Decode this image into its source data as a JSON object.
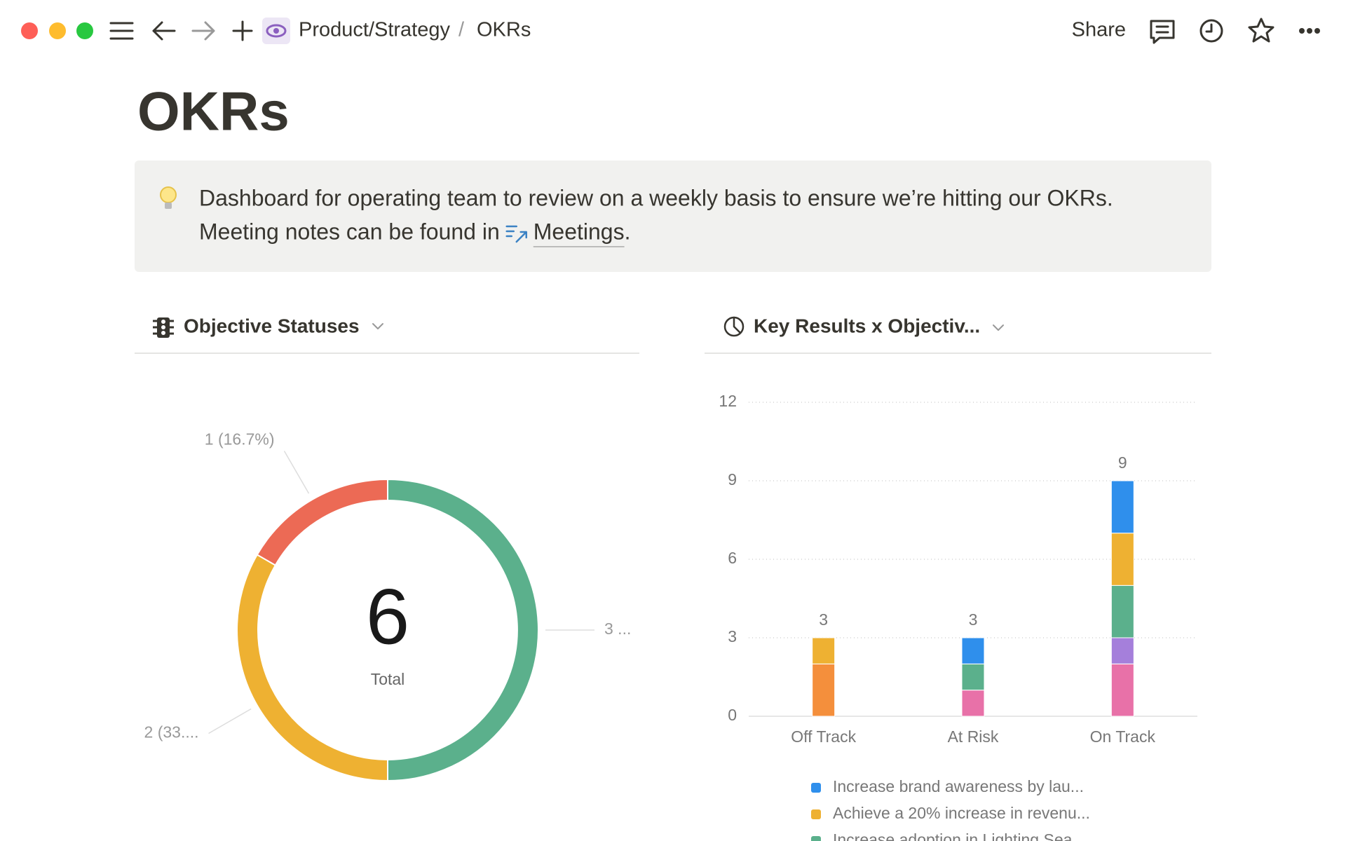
{
  "header": {
    "breadcrumb": [
      "Product/Strategy",
      "OKRs"
    ],
    "breadcrumb_separator": "/",
    "share": "Share"
  },
  "title": "OKRs",
  "callout": {
    "line1": "Dashboard for operating team to review on a weekly basis to ensure we’re hitting our OKRs.",
    "line2": "Meeting notes can be found in",
    "link": "Meetings",
    "line2_end": "."
  },
  "chart_data": [
    {
      "type": "donut",
      "title": "Objective Statuses",
      "values": [
        3,
        2,
        1
      ],
      "value_labels": [
        "3 ...",
        "2 (33....",
        "1 (16.7%)"
      ],
      "colors": [
        "#5bb08c",
        "#eeb132",
        "#ec6a55"
      ],
      "center_value": 6,
      "center_label": "Total"
    },
    {
      "type": "stacked-bar",
      "title": "Key Results x Objectiv...",
      "categories": [
        "Off Track",
        "At Risk",
        "On Track"
      ],
      "series": [
        {
          "name": "Increase brand awareness by lau...",
          "color": "#2f8fec",
          "values": [
            0,
            1,
            2
          ]
        },
        {
          "name": "Achieve a 20% increase in revenu...",
          "color": "#eeb132",
          "values": [
            1,
            0,
            2
          ]
        },
        {
          "name": "Increase adoption in Lighting Sea...",
          "color": "#5bb08c",
          "values": [
            0,
            1,
            2
          ]
        },
        {
          "color": "#a57fdb",
          "values": [
            0,
            0,
            1
          ]
        },
        {
          "color": "#e871a8",
          "values": [
            0,
            1,
            2
          ]
        },
        {
          "color": "#f48f3c",
          "values": [
            2,
            0,
            0
          ]
        }
      ],
      "totals": [
        3,
        3,
        9
      ],
      "ylim": [
        0,
        12
      ],
      "yticks": [
        0,
        3,
        6,
        9,
        12
      ],
      "grid": true
    }
  ]
}
